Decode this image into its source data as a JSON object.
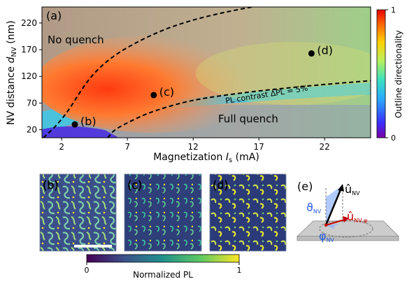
{
  "chart_data": [
    {
      "type": "heatmap",
      "panel_label": "(a)",
      "xlabel_main": "Magnetization ",
      "xlabel_var": "I",
      "xlabel_sub": "s",
      "xlabel_unit": " (mA)",
      "ylabel_main": "NV distance ",
      "ylabel_var": "d",
      "ylabel_sub": "NV",
      "ylabel_unit": " (nm)",
      "xticks": [
        2,
        7,
        12,
        17,
        22
      ],
      "yticks": [
        20,
        70,
        120,
        170,
        220
      ],
      "xlim": [
        0.5,
        25.5
      ],
      "ylim": [
        5,
        250
      ],
      "colorbar": {
        "label": "Outline directionality",
        "ticks": [
          0,
          1
        ],
        "tick_labels": [
          "0",
          "1"
        ],
        "colormap": "jet"
      },
      "regions": [
        {
          "label": "No quench"
        },
        {
          "label": "Full quench"
        }
      ],
      "contour_label": "PL contrast ΔPL = 5%",
      "points": [
        {
          "label": "(b)",
          "x": 3.0,
          "y": 30
        },
        {
          "label": "(c)",
          "x": 9.0,
          "y": 85
        },
        {
          "label": "(d)",
          "x": 21.0,
          "y": 163
        }
      ],
      "upper_boundary": [
        [
          0.6,
          5
        ],
        [
          1.5,
          25
        ],
        [
          2.5,
          55
        ],
        [
          3.5,
          95
        ],
        [
          4.5,
          128
        ],
        [
          6,
          160
        ],
        [
          8,
          188
        ],
        [
          10,
          210
        ],
        [
          12,
          226
        ],
        [
          14,
          238
        ],
        [
          16,
          248
        ],
        [
          17,
          252
        ]
      ],
      "lower_boundary": [
        [
          5.5,
          5
        ],
        [
          6,
          20
        ],
        [
          7,
          33
        ],
        [
          8,
          45
        ],
        [
          9,
          55
        ],
        [
          11,
          70
        ],
        [
          13,
          80
        ],
        [
          16,
          90
        ],
        [
          19,
          98
        ],
        [
          22,
          105
        ],
        [
          25.5,
          112
        ]
      ]
    },
    {
      "type": "heatmap",
      "images": [
        {
          "label": "(b)"
        },
        {
          "label": "(c)"
        },
        {
          "label": "(d)"
        }
      ],
      "colorbar": {
        "label": "Normalized PL",
        "ticks": [
          0,
          1
        ],
        "tick_labels": [
          "0",
          "1"
        ],
        "colormap": "viridis"
      }
    }
  ],
  "diagram": {
    "label": "(e)",
    "u_nv": "û",
    "u_nv_sub": "NV",
    "u_nv_phi": "û",
    "u_nv_phi_sub": "NV,φ",
    "theta": "ϑ",
    "theta_sub": "NV",
    "phi": "φ",
    "phi_sub": "NV",
    "colors": {
      "u_nv": "#000000",
      "u_nv_phi": "#c40000",
      "theta": "#2a5bd7",
      "phi": "#2a5bd7"
    }
  }
}
